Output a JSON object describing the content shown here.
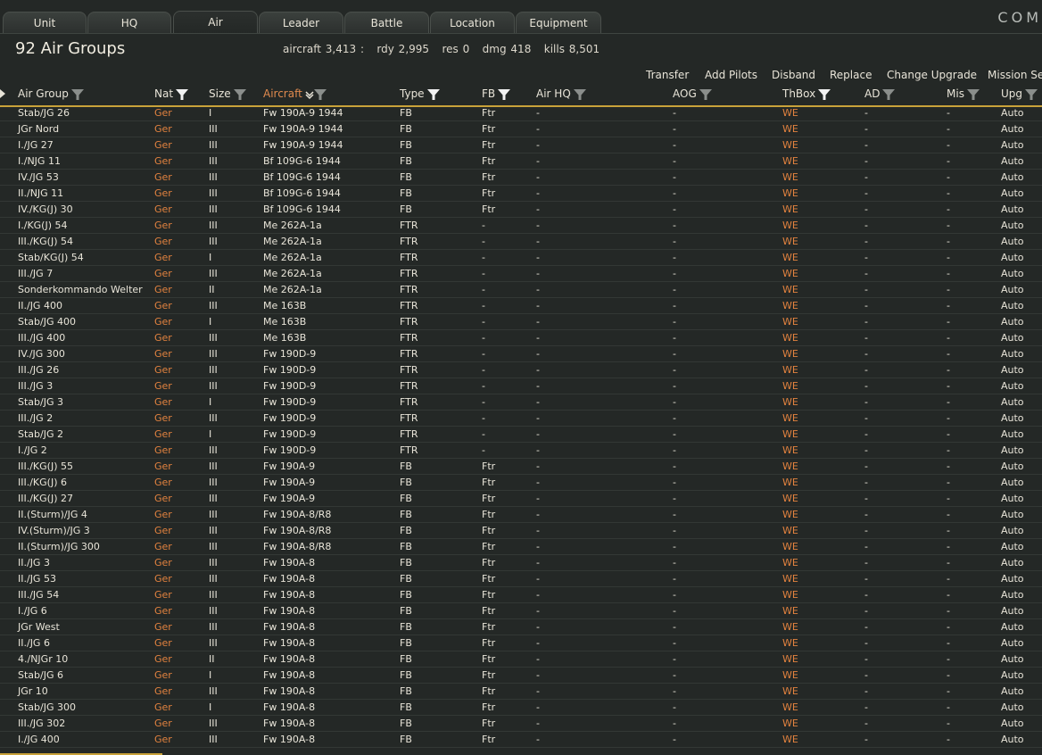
{
  "tabs": [
    "Unit",
    "HQ",
    "Air",
    "Leader",
    "Battle",
    "Location",
    "Equipment"
  ],
  "active_tab": "Air",
  "brand": "COM",
  "title": "92 Air Groups",
  "stats": "aircraft 3,413 :   rdy 2,995   res 0   dmg 418   kills 8,501",
  "actions": [
    "Transfer",
    "Add Pilots",
    "Disband",
    "Replace",
    "Change Upgrade",
    "Mission Set"
  ],
  "columns": [
    "Air Group",
    "Nat",
    "Size",
    "Aircraft",
    "Type",
    "FB",
    "Air HQ",
    "AOG",
    "ThBox",
    "AD",
    "Mis",
    "Upg"
  ],
  "sorted_column": "Aircraft",
  "colors": {
    "accent": "#c9a23a",
    "nation": "#e2823f",
    "sorted": "#e08a4e"
  },
  "rows": [
    [
      "Stab/JG 26",
      "Ger",
      "I",
      "Fw 190A-9 1944",
      "FB",
      "Ftr",
      "-",
      "-",
      "WE",
      "-",
      "-",
      "Auto"
    ],
    [
      "JGr Nord",
      "Ger",
      "III",
      "Fw 190A-9 1944",
      "FB",
      "Ftr",
      "-",
      "-",
      "WE",
      "-",
      "-",
      "Auto"
    ],
    [
      "I./JG 27",
      "Ger",
      "III",
      "Fw 190A-9 1944",
      "FB",
      "Ftr",
      "-",
      "-",
      "WE",
      "-",
      "-",
      "Auto"
    ],
    [
      "I./NJG 11",
      "Ger",
      "III",
      "Bf 109G-6 1944",
      "FB",
      "Ftr",
      "-",
      "-",
      "WE",
      "-",
      "-",
      "Auto"
    ],
    [
      "IV./JG 53",
      "Ger",
      "III",
      "Bf 109G-6 1944",
      "FB",
      "Ftr",
      "-",
      "-",
      "WE",
      "-",
      "-",
      "Auto"
    ],
    [
      "II./NJG 11",
      "Ger",
      "III",
      "Bf 109G-6 1944",
      "FB",
      "Ftr",
      "-",
      "-",
      "WE",
      "-",
      "-",
      "Auto"
    ],
    [
      "IV./KG(J) 30",
      "Ger",
      "III",
      "Bf 109G-6 1944",
      "FB",
      "Ftr",
      "-",
      "-",
      "WE",
      "-",
      "-",
      "Auto"
    ],
    [
      "I./KG(J) 54",
      "Ger",
      "III",
      "Me 262A-1a",
      "FTR",
      "-",
      "-",
      "-",
      "WE",
      "-",
      "-",
      "Auto"
    ],
    [
      "III./KG(J) 54",
      "Ger",
      "III",
      "Me 262A-1a",
      "FTR",
      "-",
      "-",
      "-",
      "WE",
      "-",
      "-",
      "Auto"
    ],
    [
      "Stab/KG(J) 54",
      "Ger",
      "I",
      "Me 262A-1a",
      "FTR",
      "-",
      "-",
      "-",
      "WE",
      "-",
      "-",
      "Auto"
    ],
    [
      "III./JG 7",
      "Ger",
      "III",
      "Me 262A-1a",
      "FTR",
      "-",
      "-",
      "-",
      "WE",
      "-",
      "-",
      "Auto"
    ],
    [
      "Sonderkommando Welter",
      "Ger",
      "II",
      "Me 262A-1a",
      "FTR",
      "-",
      "-",
      "-",
      "WE",
      "-",
      "-",
      "Auto"
    ],
    [
      "II./JG 400",
      "Ger",
      "III",
      "Me 163B",
      "FTR",
      "-",
      "-",
      "-",
      "WE",
      "-",
      "-",
      "Auto"
    ],
    [
      "Stab/JG 400",
      "Ger",
      "I",
      "Me 163B",
      "FTR",
      "-",
      "-",
      "-",
      "WE",
      "-",
      "-",
      "Auto"
    ],
    [
      "III./JG 400",
      "Ger",
      "III",
      "Me 163B",
      "FTR",
      "-",
      "-",
      "-",
      "WE",
      "-",
      "-",
      "Auto"
    ],
    [
      "IV./JG 300",
      "Ger",
      "III",
      "Fw 190D-9",
      "FTR",
      "-",
      "-",
      "-",
      "WE",
      "-",
      "-",
      "Auto"
    ],
    [
      "III./JG 26",
      "Ger",
      "III",
      "Fw 190D-9",
      "FTR",
      "-",
      "-",
      "-",
      "WE",
      "-",
      "-",
      "Auto"
    ],
    [
      "III./JG 3",
      "Ger",
      "III",
      "Fw 190D-9",
      "FTR",
      "-",
      "-",
      "-",
      "WE",
      "-",
      "-",
      "Auto"
    ],
    [
      "Stab/JG 3",
      "Ger",
      "I",
      "Fw 190D-9",
      "FTR",
      "-",
      "-",
      "-",
      "WE",
      "-",
      "-",
      "Auto"
    ],
    [
      "III./JG 2",
      "Ger",
      "III",
      "Fw 190D-9",
      "FTR",
      "-",
      "-",
      "-",
      "WE",
      "-",
      "-",
      "Auto"
    ],
    [
      "Stab/JG 2",
      "Ger",
      "I",
      "Fw 190D-9",
      "FTR",
      "-",
      "-",
      "-",
      "WE",
      "-",
      "-",
      "Auto"
    ],
    [
      "I./JG 2",
      "Ger",
      "III",
      "Fw 190D-9",
      "FTR",
      "-",
      "-",
      "-",
      "WE",
      "-",
      "-",
      "Auto"
    ],
    [
      "III./KG(J) 55",
      "Ger",
      "III",
      "Fw 190A-9",
      "FB",
      "Ftr",
      "-",
      "-",
      "WE",
      "-",
      "-",
      "Auto"
    ],
    [
      "III./KG(J) 6",
      "Ger",
      "III",
      "Fw 190A-9",
      "FB",
      "Ftr",
      "-",
      "-",
      "WE",
      "-",
      "-",
      "Auto"
    ],
    [
      "III./KG(J) 27",
      "Ger",
      "III",
      "Fw 190A-9",
      "FB",
      "Ftr",
      "-",
      "-",
      "WE",
      "-",
      "-",
      "Auto"
    ],
    [
      "II.(Sturm)/JG 4",
      "Ger",
      "III",
      "Fw 190A-8/R8",
      "FB",
      "Ftr",
      "-",
      "-",
      "WE",
      "-",
      "-",
      "Auto"
    ],
    [
      "IV.(Sturm)/JG 3",
      "Ger",
      "III",
      "Fw 190A-8/R8",
      "FB",
      "Ftr",
      "-",
      "-",
      "WE",
      "-",
      "-",
      "Auto"
    ],
    [
      "II.(Sturm)/JG 300",
      "Ger",
      "III",
      "Fw 190A-8/R8",
      "FB",
      "Ftr",
      "-",
      "-",
      "WE",
      "-",
      "-",
      "Auto"
    ],
    [
      "II./JG 3",
      "Ger",
      "III",
      "Fw 190A-8",
      "FB",
      "Ftr",
      "-",
      "-",
      "WE",
      "-",
      "-",
      "Auto"
    ],
    [
      "II./JG 53",
      "Ger",
      "III",
      "Fw 190A-8",
      "FB",
      "Ftr",
      "-",
      "-",
      "WE",
      "-",
      "-",
      "Auto"
    ],
    [
      "III./JG 54",
      "Ger",
      "III",
      "Fw 190A-8",
      "FB",
      "Ftr",
      "-",
      "-",
      "WE",
      "-",
      "-",
      "Auto"
    ],
    [
      "I./JG 6",
      "Ger",
      "III",
      "Fw 190A-8",
      "FB",
      "Ftr",
      "-",
      "-",
      "WE",
      "-",
      "-",
      "Auto"
    ],
    [
      "JGr West",
      "Ger",
      "III",
      "Fw 190A-8",
      "FB",
      "Ftr",
      "-",
      "-",
      "WE",
      "-",
      "-",
      "Auto"
    ],
    [
      "II./JG 6",
      "Ger",
      "III",
      "Fw 190A-8",
      "FB",
      "Ftr",
      "-",
      "-",
      "WE",
      "-",
      "-",
      "Auto"
    ],
    [
      "4./NJGr 10",
      "Ger",
      "II",
      "Fw 190A-8",
      "FB",
      "Ftr",
      "-",
      "-",
      "WE",
      "-",
      "-",
      "Auto"
    ],
    [
      "Stab/JG 6",
      "Ger",
      "I",
      "Fw 190A-8",
      "FB",
      "Ftr",
      "-",
      "-",
      "WE",
      "-",
      "-",
      "Auto"
    ],
    [
      "JGr 10",
      "Ger",
      "III",
      "Fw 190A-8",
      "FB",
      "Ftr",
      "-",
      "-",
      "WE",
      "-",
      "-",
      "Auto"
    ],
    [
      "Stab/JG 300",
      "Ger",
      "I",
      "Fw 190A-8",
      "FB",
      "Ftr",
      "-",
      "-",
      "WE",
      "-",
      "-",
      "Auto"
    ],
    [
      "III./JG 302",
      "Ger",
      "III",
      "Fw 190A-8",
      "FB",
      "Ftr",
      "-",
      "-",
      "WE",
      "-",
      "-",
      "Auto"
    ],
    [
      "I./JG 400",
      "Ger",
      "III",
      "Fw 190A-8",
      "FB",
      "Ftr",
      "-",
      "-",
      "WE",
      "-",
      "-",
      "Auto"
    ]
  ]
}
